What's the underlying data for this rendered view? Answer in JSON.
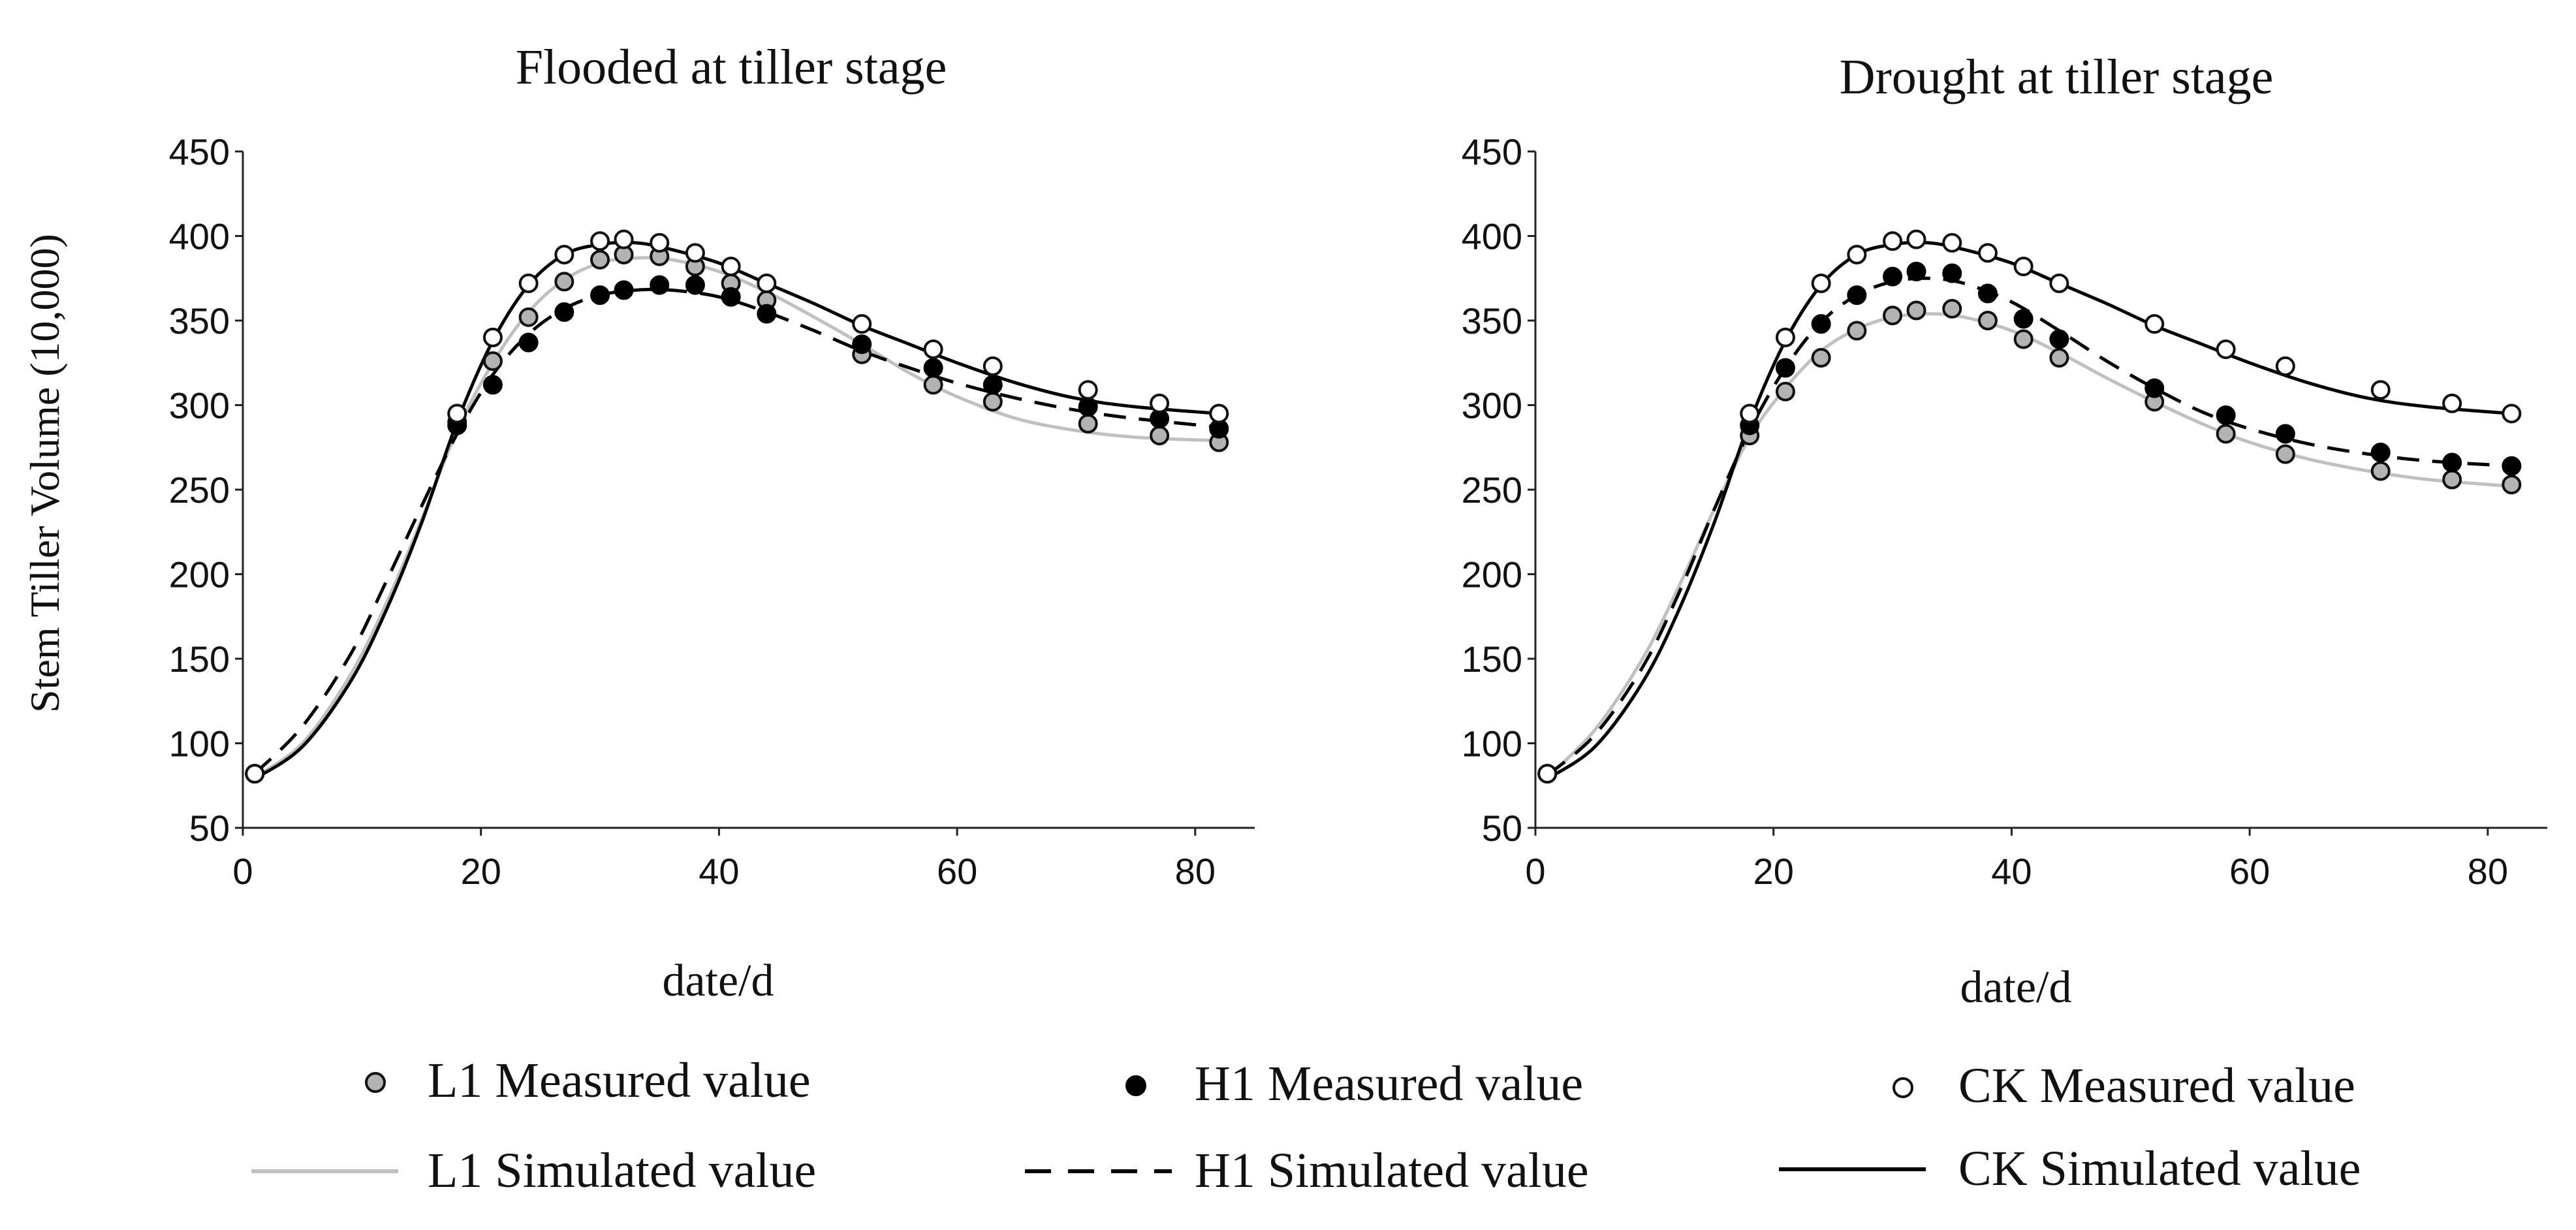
{
  "chart_data": [
    {
      "type": "scatter",
      "title": "Flooded at tiller stage",
      "xlabel": "date/d",
      "ylabel": "Stem Tiller Volume (10,000)",
      "xlim": [
        0,
        85
      ],
      "ylim": [
        50,
        450
      ],
      "xticks": [
        0,
        20,
        40,
        60,
        80
      ],
      "yticks": [
        50,
        100,
        150,
        200,
        250,
        300,
        350,
        400,
        450
      ],
      "grid": false,
      "x": [
        1,
        18,
        21,
        24,
        27,
        30,
        32,
        35,
        38,
        41,
        44,
        52,
        58,
        63,
        71,
        77,
        82
      ],
      "series": [
        {
          "name": "L1 Measured value",
          "kind": "measured",
          "values": [
            82,
            290,
            326,
            352,
            373,
            386,
            389,
            388,
            382,
            372,
            362,
            330,
            312,
            302,
            289,
            282,
            278
          ]
        },
        {
          "name": "H1 Measured value",
          "kind": "measured",
          "values": [
            82,
            288,
            312,
            337,
            355,
            365,
            368,
            371,
            371,
            364,
            354,
            336,
            322,
            312,
            299,
            292,
            286
          ]
        },
        {
          "name": "CK Measured value",
          "kind": "measured",
          "values": [
            82,
            295,
            340,
            372,
            389,
            397,
            398,
            396,
            390,
            382,
            372,
            348,
            333,
            323,
            309,
            301,
            295
          ]
        },
        {
          "name": "L1 Simulated value",
          "kind": "simulated",
          "x": [
            1,
            5,
            9,
            12,
            15,
            18,
            21,
            24,
            27,
            30,
            33,
            36,
            40,
            44,
            48,
            52,
            56,
            60,
            65,
            70,
            75,
            82
          ],
          "values": [
            80,
            100,
            140,
            182,
            232,
            285,
            325,
            355,
            374,
            384,
            387,
            386,
            379,
            367,
            352,
            336,
            319,
            305,
            292,
            285,
            281,
            279
          ]
        },
        {
          "name": "H1 Simulated value",
          "kind": "simulated",
          "x": [
            1,
            5,
            9,
            12,
            15,
            18,
            21,
            24,
            27,
            30,
            33,
            36,
            40,
            44,
            48,
            52,
            56,
            60,
            65,
            70,
            75,
            82
          ],
          "values": [
            82,
            110,
            152,
            195,
            240,
            283,
            318,
            342,
            357,
            365,
            368,
            368,
            364,
            355,
            344,
            332,
            322,
            313,
            304,
            297,
            292,
            287
          ]
        },
        {
          "name": "CK Simulated value",
          "kind": "simulated",
          "x": [
            1,
            5,
            9,
            12,
            15,
            18,
            21,
            24,
            27,
            30,
            33,
            36,
            40,
            44,
            48,
            52,
            56,
            60,
            65,
            70,
            75,
            82
          ],
          "values": [
            79,
            98,
            136,
            178,
            230,
            290,
            338,
            371,
            389,
            395,
            396,
            392,
            384,
            372,
            360,
            347,
            336,
            325,
            313,
            304,
            299,
            295
          ]
        }
      ]
    },
    {
      "type": "scatter",
      "title": "Drought at tiller stage",
      "xlabel": "date/d",
      "xlim": [
        0,
        85
      ],
      "ylim": [
        50,
        450
      ],
      "xticks": [
        0,
        20,
        40,
        60,
        80
      ],
      "yticks": [
        50,
        100,
        150,
        200,
        250,
        300,
        350,
        400,
        450
      ],
      "grid": false,
      "x": [
        1,
        18,
        21,
        24,
        27,
        30,
        32,
        35,
        38,
        41,
        44,
        52,
        58,
        63,
        71,
        77,
        82
      ],
      "series": [
        {
          "name": "L1 Measured value",
          "kind": "measured",
          "values": [
            82,
            282,
            308,
            328,
            344,
            353,
            356,
            357,
            350,
            339,
            328,
            302,
            283,
            271,
            261,
            256,
            253
          ]
        },
        {
          "name": "H1 Measured value",
          "kind": "measured",
          "values": [
            82,
            288,
            322,
            348,
            365,
            376,
            379,
            378,
            366,
            351,
            339,
            310,
            294,
            283,
            272,
            266,
            264
          ]
        },
        {
          "name": "CK Measured value",
          "kind": "measured",
          "values": [
            82,
            295,
            340,
            372,
            389,
            397,
            398,
            396,
            390,
            382,
            372,
            348,
            333,
            323,
            309,
            301,
            295
          ]
        },
        {
          "name": "L1 Simulated value",
          "kind": "simulated",
          "x": [
            1,
            5,
            9,
            12,
            15,
            18,
            21,
            24,
            27,
            30,
            33,
            36,
            40,
            44,
            48,
            52,
            56,
            60,
            65,
            70,
            75,
            82
          ],
          "values": [
            80,
            108,
            150,
            192,
            238,
            281,
            310,
            332,
            345,
            352,
            354,
            352,
            344,
            331,
            316,
            302,
            289,
            278,
            268,
            261,
            256,
            252
          ]
        },
        {
          "name": "H1 Simulated value",
          "kind": "simulated",
          "x": [
            1,
            5,
            9,
            12,
            15,
            18,
            21,
            24,
            27,
            30,
            33,
            36,
            40,
            44,
            48,
            52,
            56,
            60,
            65,
            70,
            75,
            82
          ],
          "values": [
            81,
            105,
            145,
            188,
            238,
            285,
            322,
            349,
            365,
            373,
            375,
            372,
            361,
            344,
            326,
            310,
            296,
            286,
            277,
            271,
            267,
            264
          ]
        },
        {
          "name": "CK Simulated value",
          "kind": "simulated",
          "x": [
            1,
            5,
            9,
            12,
            15,
            18,
            21,
            24,
            27,
            30,
            33,
            36,
            40,
            44,
            48,
            52,
            56,
            60,
            65,
            70,
            75,
            82
          ],
          "values": [
            79,
            98,
            136,
            178,
            230,
            290,
            338,
            371,
            389,
            395,
            396,
            392,
            384,
            372,
            360,
            347,
            336,
            325,
            313,
            304,
            299,
            295
          ]
        }
      ]
    }
  ],
  "legend": {
    "placement": "bottom",
    "items": [
      {
        "label": "L1 Measured value",
        "symbol": "circle",
        "fill": "#b3b3b3",
        "stroke": "#111111"
      },
      {
        "label": "H1 Measured value",
        "symbol": "circle",
        "fill": "#000000",
        "stroke": "#000000"
      },
      {
        "label": "CK Measured value",
        "symbol": "circle",
        "fill": "#ffffff",
        "stroke": "#111111"
      },
      {
        "label": "L1 Simulated value",
        "symbol": "line",
        "stroke": "#c0c0c0",
        "dash": "solid"
      },
      {
        "label": "H1 Simulated value",
        "symbol": "line",
        "stroke": "#000000",
        "dash": "dashed"
      },
      {
        "label": "CK Simulated value",
        "symbol": "line",
        "stroke": "#000000",
        "dash": "solid"
      }
    ]
  },
  "colors": {
    "L1": "#b3b3b3",
    "H1": "#000000",
    "CK": "#000000"
  }
}
